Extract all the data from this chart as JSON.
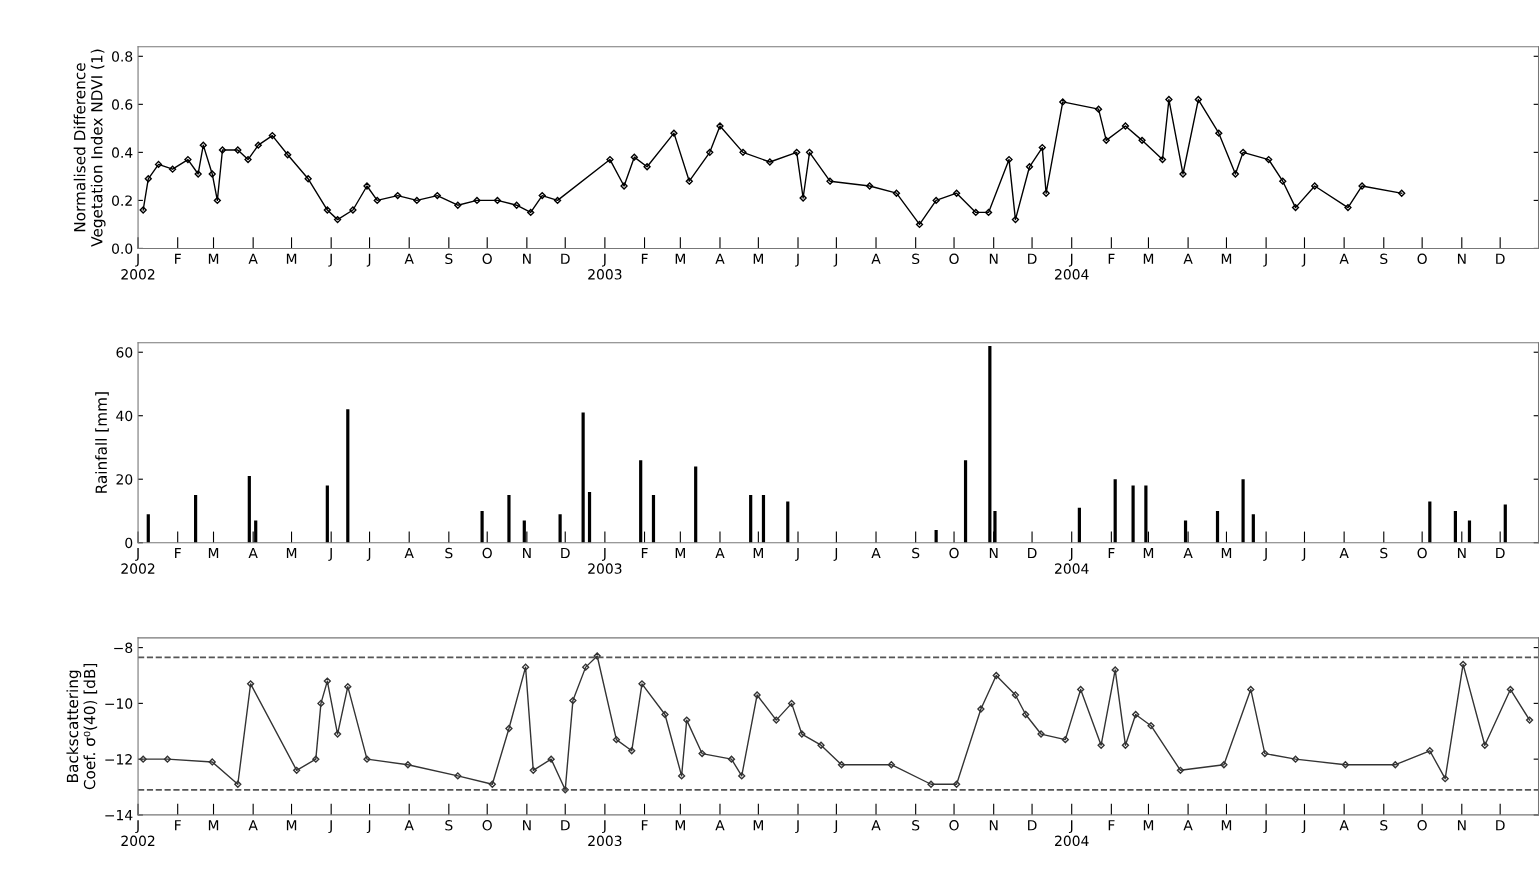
{
  "chart_data": [
    {
      "type": "line",
      "ylabel": "Normalised Difference\nVegetation Index NDVI (1)",
      "marker": "diamond",
      "grid": false,
      "xlim": [
        "2002-01-01",
        "2004-12-31"
      ],
      "ylim": [
        0,
        0.84
      ],
      "yticks": [
        {
          "value": 0,
          "label": "0.0"
        },
        0.2,
        0.4,
        0.6,
        0.8
      ],
      "xticks": [
        {
          "value": "2002-01-01",
          "label": "J\n2002"
        },
        {
          "value": "2002-02-01",
          "label": "F"
        },
        {
          "value": "2002-03-01",
          "label": "M"
        },
        {
          "value": "2002-04-01",
          "label": "A"
        },
        {
          "value": "2002-05-01",
          "label": "M"
        },
        {
          "value": "2002-06-01",
          "label": "J"
        },
        {
          "value": "2002-07-01",
          "label": "J"
        },
        {
          "value": "2002-08-01",
          "label": "A"
        },
        {
          "value": "2002-09-01",
          "label": "S"
        },
        {
          "value": "2002-10-01",
          "label": "O"
        },
        {
          "value": "2002-11-01",
          "label": "N"
        },
        {
          "value": "2002-12-01",
          "label": "D"
        },
        {
          "value": "2003-01-01",
          "label": "J\n2003"
        },
        {
          "value": "2003-02-01",
          "label": "F"
        },
        {
          "value": "2003-03-01",
          "label": "M"
        },
        {
          "value": "2003-04-01",
          "label": "A"
        },
        {
          "value": "2003-05-01",
          "label": "M"
        },
        {
          "value": "2003-06-01",
          "label": "J"
        },
        {
          "value": "2003-07-01",
          "label": "J"
        },
        {
          "value": "2003-08-01",
          "label": "A"
        },
        {
          "value": "2003-09-01",
          "label": "S"
        },
        {
          "value": "2003-10-01",
          "label": "O"
        },
        {
          "value": "2003-11-01",
          "label": "N"
        },
        {
          "value": "2003-12-01",
          "label": "D"
        },
        {
          "value": "2004-01-01",
          "label": "J\n2004"
        },
        {
          "value": "2004-02-01",
          "label": "F"
        },
        {
          "value": "2004-03-01",
          "label": "M"
        },
        {
          "value": "2004-04-01",
          "label": "A"
        },
        {
          "value": "2004-05-01",
          "label": "M"
        },
        {
          "value": "2004-06-01",
          "label": "J"
        },
        {
          "value": "2004-07-01",
          "label": "J"
        },
        {
          "value": "2004-08-01",
          "label": "A"
        },
        {
          "value": "2004-09-01",
          "label": "S"
        },
        {
          "value": "2004-10-01",
          "label": "O"
        },
        {
          "value": "2004-11-01",
          "label": "N"
        },
        {
          "value": "2004-12-01",
          "label": "D"
        }
      ],
      "series": [
        {
          "color": "#000000",
          "x": [
            "2002-01-05",
            "2002-01-09",
            "2002-01-17",
            "2002-01-28",
            "2002-02-09",
            "2002-02-17",
            "2002-02-21",
            "2002-02-28",
            "2002-03-04",
            "2002-03-08",
            "2002-03-20",
            "2002-03-28",
            "2002-04-05",
            "2002-04-16",
            "2002-04-28",
            "2002-05-14",
            "2002-05-29",
            "2002-06-06",
            "2002-06-18",
            "2002-06-29",
            "2002-07-07",
            "2002-07-23",
            "2002-08-07",
            "2002-08-23",
            "2002-09-08",
            "2002-09-23",
            "2002-10-09",
            "2002-10-24",
            "2002-11-04",
            "2002-11-13",
            "2002-11-25",
            "2003-01-05",
            "2003-01-16",
            "2003-01-24",
            "2003-02-03",
            "2003-02-24",
            "2003-03-08",
            "2003-03-24",
            "2003-04-01",
            "2003-04-19",
            "2003-05-10",
            "2003-05-31",
            "2003-06-05",
            "2003-06-10",
            "2003-06-26",
            "2003-07-27",
            "2003-08-17",
            "2003-09-04",
            "2003-09-17",
            "2003-10-03",
            "2003-10-18",
            "2003-10-28",
            "2003-11-13",
            "2003-11-18",
            "2003-11-29",
            "2003-12-09",
            "2003-12-12",
            "2003-12-25",
            "2004-01-22",
            "2004-01-28",
            "2004-02-12",
            "2004-02-25",
            "2004-03-12",
            "2004-03-17",
            "2004-03-28",
            "2004-04-09",
            "2004-04-25",
            "2004-05-08",
            "2004-05-14",
            "2004-06-03",
            "2004-06-14",
            "2004-06-24",
            "2004-07-09",
            "2004-08-04",
            "2004-08-15",
            "2004-09-15"
          ],
          "values": [
            0.16,
            0.29,
            0.35,
            0.33,
            0.37,
            0.31,
            0.43,
            0.31,
            0.2,
            0.41,
            0.41,
            0.37,
            0.43,
            0.47,
            0.39,
            0.29,
            0.16,
            0.12,
            0.16,
            0.26,
            0.2,
            0.22,
            0.2,
            0.22,
            0.18,
            0.2,
            0.2,
            0.18,
            0.15,
            0.22,
            0.2,
            0.37,
            0.26,
            0.38,
            0.34,
            0.48,
            0.28,
            0.4,
            0.51,
            0.4,
            0.36,
            0.4,
            0.21,
            0.4,
            0.28,
            0.26,
            0.23,
            0.1,
            0.2,
            0.23,
            0.15,
            0.15,
            0.37,
            0.12,
            0.34,
            0.42,
            0.23,
            0.61,
            0.58,
            0.45,
            0.51,
            0.45,
            0.37,
            0.62,
            0.31,
            0.62,
            0.48,
            0.31,
            0.4,
            0.37,
            0.28,
            0.17,
            0.26,
            0.17,
            0.26,
            0.23
          ]
        }
      ]
    },
    {
      "type": "bar",
      "ylabel": "Rainfall [mm]",
      "grid": false,
      "xlim": [
        "2002-01-01",
        "2004-12-31"
      ],
      "ylim": [
        0,
        63
      ],
      "yticks": [
        0,
        20,
        40,
        60
      ],
      "xticks": [
        {
          "value": "2002-01-01",
          "label": "J\n2002"
        },
        {
          "value": "2002-02-01",
          "label": "F"
        },
        {
          "value": "2002-03-01",
          "label": "M"
        },
        {
          "value": "2002-04-01",
          "label": "A"
        },
        {
          "value": "2002-05-01",
          "label": "M"
        },
        {
          "value": "2002-06-01",
          "label": "J"
        },
        {
          "value": "2002-07-01",
          "label": "J"
        },
        {
          "value": "2002-08-01",
          "label": "A"
        },
        {
          "value": "2002-09-01",
          "label": "S"
        },
        {
          "value": "2002-10-01",
          "label": "O"
        },
        {
          "value": "2002-11-01",
          "label": "N"
        },
        {
          "value": "2002-12-01",
          "label": "D"
        },
        {
          "value": "2003-01-01",
          "label": "J\n2003"
        },
        {
          "value": "2003-02-01",
          "label": "F"
        },
        {
          "value": "2003-03-01",
          "label": "M"
        },
        {
          "value": "2003-04-01",
          "label": "A"
        },
        {
          "value": "2003-05-01",
          "label": "M"
        },
        {
          "value": "2003-06-01",
          "label": "J"
        },
        {
          "value": "2003-07-01",
          "label": "J"
        },
        {
          "value": "2003-08-01",
          "label": "A"
        },
        {
          "value": "2003-09-01",
          "label": "S"
        },
        {
          "value": "2003-10-01",
          "label": "O"
        },
        {
          "value": "2003-11-01",
          "label": "N"
        },
        {
          "value": "2003-12-01",
          "label": "D"
        },
        {
          "value": "2004-01-01",
          "label": "J\n2004"
        },
        {
          "value": "2004-02-01",
          "label": "F"
        },
        {
          "value": "2004-03-01",
          "label": "M"
        },
        {
          "value": "2004-04-01",
          "label": "A"
        },
        {
          "value": "2004-05-01",
          "label": "M"
        },
        {
          "value": "2004-06-01",
          "label": "J"
        },
        {
          "value": "2004-07-01",
          "label": "J"
        },
        {
          "value": "2004-08-01",
          "label": "A"
        },
        {
          "value": "2004-09-01",
          "label": "S"
        },
        {
          "value": "2004-10-01",
          "label": "O"
        },
        {
          "value": "2004-11-01",
          "label": "N"
        },
        {
          "value": "2004-12-01",
          "label": "D"
        }
      ],
      "series": [
        {
          "color": "#000000",
          "x": [
            "2002-01-09",
            "2002-02-15",
            "2002-03-29",
            "2002-04-03",
            "2002-05-29",
            "2002-06-14",
            "2002-09-27",
            "2002-10-18",
            "2002-10-30",
            "2002-11-27",
            "2002-12-15",
            "2002-12-20",
            "2003-01-29",
            "2003-02-08",
            "2003-03-13",
            "2003-04-25",
            "2003-05-05",
            "2003-05-24",
            "2003-09-17",
            "2003-10-10",
            "2003-10-29",
            "2003-11-02",
            "2004-01-07",
            "2004-02-04",
            "2004-02-18",
            "2004-02-28",
            "2004-03-30",
            "2004-04-24",
            "2004-05-14",
            "2004-05-22",
            "2004-10-07",
            "2004-10-27",
            "2004-11-07",
            "2004-12-05"
          ],
          "values": [
            9,
            15,
            21,
            7,
            18,
            42,
            10,
            15,
            7,
            9,
            41,
            16,
            26,
            15,
            24,
            15,
            15,
            13,
            4,
            26,
            62,
            10,
            11,
            20,
            18,
            18,
            7,
            10,
            20,
            9,
            13,
            10,
            7,
            12
          ]
        }
      ]
    },
    {
      "type": "line",
      "ylabel": "Backscattering\nCoef. σ⁰(40) [dB]",
      "marker": "diamond",
      "grid": false,
      "xlim": [
        "2002-01-01",
        "2004-12-31"
      ],
      "ylim": [
        -14,
        -7.65
      ],
      "yticks": [
        {
          "value": -14,
          "label": "−14"
        },
        {
          "value": -12,
          "label": "−12"
        },
        {
          "value": -10,
          "label": "−10"
        },
        {
          "value": -8,
          "label": "−8"
        }
      ],
      "ref_lines": [
        {
          "axis": "y",
          "value": -8.35,
          "color": "#555555",
          "line_style": "dashed"
        },
        {
          "axis": "y",
          "value": -13.1,
          "color": "#555555",
          "line_style": "dashed"
        }
      ],
      "xticks": [
        {
          "value": "2002-01-01",
          "label": "J\n2002"
        },
        {
          "value": "2002-02-01",
          "label": "F"
        },
        {
          "value": "2002-03-01",
          "label": "M"
        },
        {
          "value": "2002-04-01",
          "label": "A"
        },
        {
          "value": "2002-05-01",
          "label": "M"
        },
        {
          "value": "2002-06-01",
          "label": "J"
        },
        {
          "value": "2002-07-01",
          "label": "J"
        },
        {
          "value": "2002-08-01",
          "label": "A"
        },
        {
          "value": "2002-09-01",
          "label": "S"
        },
        {
          "value": "2002-10-01",
          "label": "O"
        },
        {
          "value": "2002-11-01",
          "label": "N"
        },
        {
          "value": "2002-12-01",
          "label": "D"
        },
        {
          "value": "2003-01-01",
          "label": "J\n2003"
        },
        {
          "value": "2003-02-01",
          "label": "F"
        },
        {
          "value": "2003-03-01",
          "label": "M"
        },
        {
          "value": "2003-04-01",
          "label": "A"
        },
        {
          "value": "2003-05-01",
          "label": "M"
        },
        {
          "value": "2003-06-01",
          "label": "J"
        },
        {
          "value": "2003-07-01",
          "label": "J"
        },
        {
          "value": "2003-08-01",
          "label": "A"
        },
        {
          "value": "2003-09-01",
          "label": "S"
        },
        {
          "value": "2003-10-01",
          "label": "O"
        },
        {
          "value": "2003-11-01",
          "label": "N"
        },
        {
          "value": "2003-12-01",
          "label": "D"
        },
        {
          "value": "2004-01-01",
          "label": "J\n2004"
        },
        {
          "value": "2004-02-01",
          "label": "F"
        },
        {
          "value": "2004-03-01",
          "label": "M"
        },
        {
          "value": "2004-04-01",
          "label": "A"
        },
        {
          "value": "2004-05-01",
          "label": "M"
        },
        {
          "value": "2004-06-01",
          "label": "J"
        },
        {
          "value": "2004-07-01",
          "label": "J"
        },
        {
          "value": "2004-08-01",
          "label": "A"
        },
        {
          "value": "2004-09-01",
          "label": "S"
        },
        {
          "value": "2004-10-01",
          "label": "O"
        },
        {
          "value": "2004-11-01",
          "label": "N"
        },
        {
          "value": "2004-12-01",
          "label": "D"
        }
      ],
      "series": [
        {
          "color": "#333333",
          "x": [
            "2002-01-05",
            "2002-01-24",
            "2002-02-28",
            "2002-03-20",
            "2002-03-30",
            "2002-05-05",
            "2002-05-20",
            "2002-05-24",
            "2002-05-29",
            "2002-06-06",
            "2002-06-14",
            "2002-06-29",
            "2002-07-31",
            "2002-09-08",
            "2002-10-05",
            "2002-10-18",
            "2002-10-31",
            "2002-11-06",
            "2002-11-20",
            "2002-12-01",
            "2002-12-07",
            "2002-12-17",
            "2002-12-26",
            "2003-01-10",
            "2003-01-22",
            "2003-01-30",
            "2003-02-17",
            "2003-03-02",
            "2003-03-06",
            "2003-03-18",
            "2003-04-10",
            "2003-04-18",
            "2003-04-30",
            "2003-05-15",
            "2003-05-27",
            "2003-06-04",
            "2003-06-19",
            "2003-07-05",
            "2003-08-13",
            "2003-09-13",
            "2003-10-03",
            "2003-10-22",
            "2003-11-03",
            "2003-11-18",
            "2003-11-26",
            "2003-12-08",
            "2003-12-27",
            "2004-01-08",
            "2004-01-24",
            "2004-02-04",
            "2004-02-12",
            "2004-02-20",
            "2004-03-03",
            "2004-03-26",
            "2004-04-29",
            "2004-05-20",
            "2004-05-31",
            "2004-06-24",
            "2004-08-02",
            "2004-09-10",
            "2004-10-07",
            "2004-10-19",
            "2004-11-02",
            "2004-11-19",
            "2004-12-09",
            "2004-12-24"
          ],
          "values": [
            -12.0,
            -12.0,
            -12.1,
            -12.9,
            -9.3,
            -12.4,
            -12.0,
            -10.0,
            -9.2,
            -11.1,
            -9.4,
            -12.0,
            -12.2,
            -12.6,
            -12.9,
            -10.9,
            -8.7,
            -12.4,
            -12.0,
            -13.1,
            -9.9,
            -8.7,
            -8.3,
            -11.3,
            -11.7,
            -9.3,
            -10.4,
            -12.6,
            -10.6,
            -11.8,
            -12.0,
            -12.6,
            -9.7,
            -10.6,
            -10.0,
            -11.1,
            -11.5,
            -12.2,
            -12.2,
            -12.9,
            -12.9,
            -10.2,
            -9.0,
            -9.7,
            -10.4,
            -11.1,
            -11.3,
            -9.5,
            -11.5,
            -8.8,
            -11.5,
            -10.4,
            -10.8,
            -12.4,
            -12.2,
            -9.5,
            -11.8,
            -12.0,
            -12.2,
            -12.2,
            -11.7,
            -12.7,
            -8.6,
            -11.5,
            -9.5,
            -10.6
          ]
        }
      ]
    }
  ]
}
